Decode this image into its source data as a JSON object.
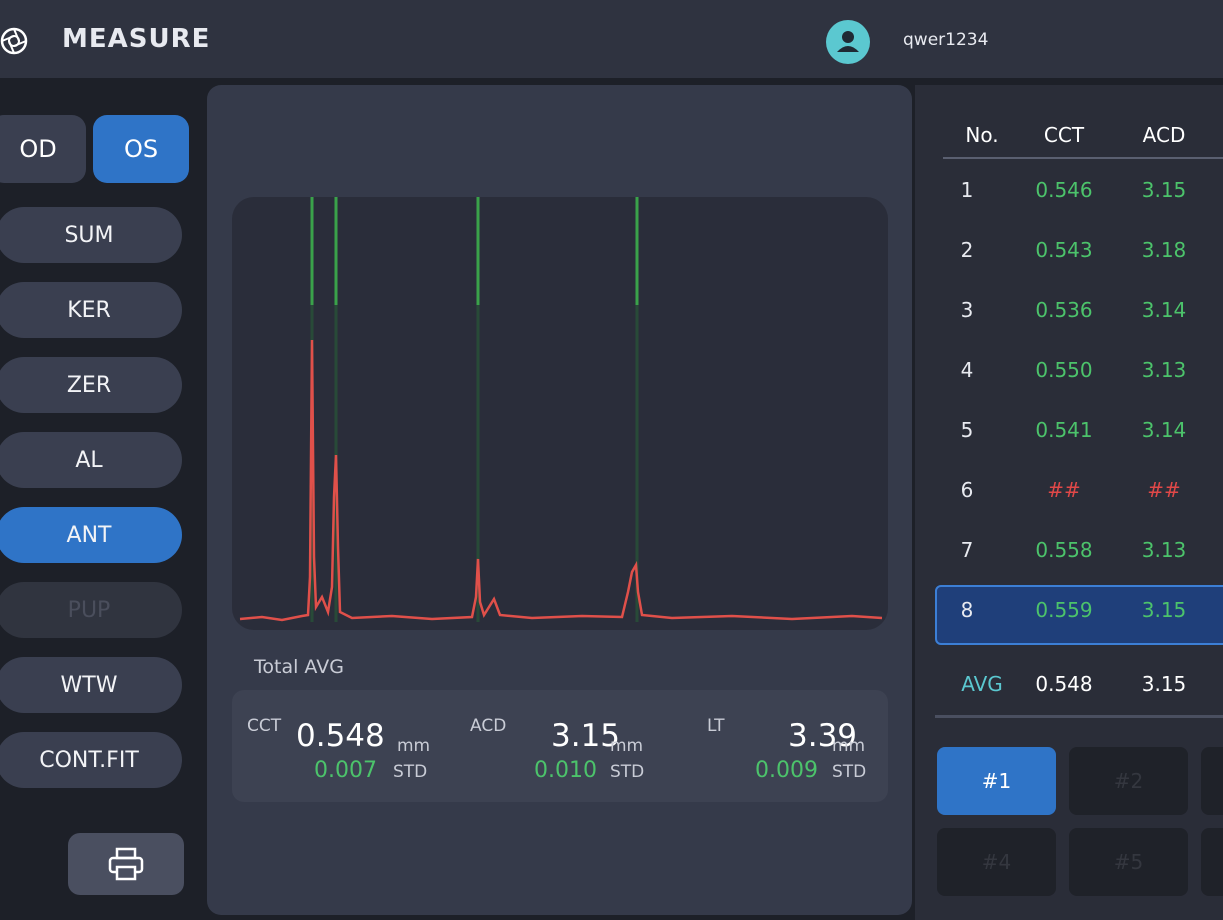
{
  "header": {
    "title": "MEASURE",
    "user": "qwer1234"
  },
  "eye_toggle": [
    {
      "label": "OD",
      "active": false
    },
    {
      "label": "OS",
      "active": true
    }
  ],
  "menu": [
    {
      "label": "SUM",
      "state": "normal"
    },
    {
      "label": "KER",
      "state": "normal"
    },
    {
      "label": "ZER",
      "state": "normal"
    },
    {
      "label": "AL",
      "state": "normal"
    },
    {
      "label": "ANT",
      "state": "active"
    },
    {
      "label": "PUP",
      "state": "disabled"
    },
    {
      "label": "WTW",
      "state": "normal"
    },
    {
      "label": "CONT.FIT",
      "state": "normal"
    }
  ],
  "summary": {
    "label": "Total AVG",
    "measures": [
      {
        "name": "CCT",
        "value": "0.548",
        "unit": "mm",
        "std": "0.007",
        "std_label": "STD"
      },
      {
        "name": "ACD",
        "value": "3.15",
        "unit": "mm",
        "std": "0.010",
        "std_label": "STD"
      },
      {
        "name": "LT",
        "value": "3.39",
        "unit": "mm",
        "std": "0.009",
        "std_label": "STD"
      }
    ]
  },
  "table": {
    "columns": [
      "No.",
      "CCT",
      "ACD"
    ],
    "rows": [
      {
        "cells": [
          "1",
          "0.546",
          "3.15"
        ],
        "color": "#4cc36b",
        "selected": false
      },
      {
        "cells": [
          "2",
          "0.543",
          "3.18"
        ],
        "color": "#4cc36b",
        "selected": false
      },
      {
        "cells": [
          "3",
          "0.536",
          "3.14"
        ],
        "color": "#4cc36b",
        "selected": false
      },
      {
        "cells": [
          "4",
          "0.550",
          "3.13"
        ],
        "color": "#4cc36b",
        "selected": false
      },
      {
        "cells": [
          "5",
          "0.541",
          "3.14"
        ],
        "color": "#4cc36b",
        "selected": false
      },
      {
        "cells": [
          "6",
          "##",
          "##"
        ],
        "color": "#e04848",
        "selected": false
      },
      {
        "cells": [
          "7",
          "0.558",
          "3.13"
        ],
        "color": "#4cc36b",
        "selected": false
      },
      {
        "cells": [
          "8",
          "0.559",
          "3.15"
        ],
        "color": "#4cc36b",
        "selected": true
      }
    ],
    "avg": [
      "AVG",
      "0.548",
      "3.15"
    ]
  },
  "scan_buttons": [
    {
      "label": "#1",
      "active": true
    },
    {
      "label": "#2",
      "active": false
    },
    {
      "label": "#4",
      "active": false
    },
    {
      "label": "#5",
      "active": false
    }
  ]
}
